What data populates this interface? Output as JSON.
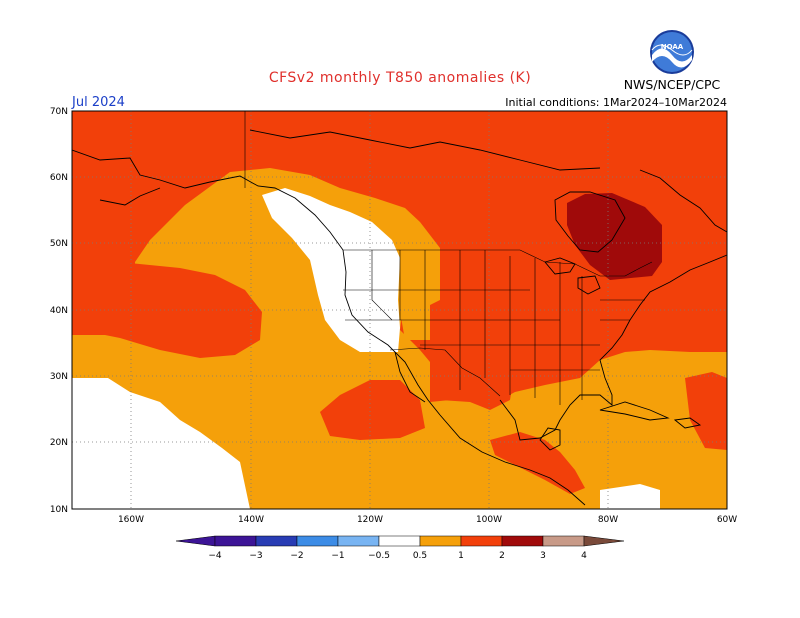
{
  "title": "CFSv2 monthly T850 anomalies (K)",
  "month": "Jul 2024",
  "conditions": "Initial conditions: 1Mar2024–10Mar2024",
  "agency": "NWS/NCEP/CPC",
  "logo_text": "NOAA",
  "colors": {
    "title": "#e0302c",
    "month": "#1b3fc8",
    "gt_0_5": "#f5a00a",
    "gt_1": "#f2400a",
    "gt_2": "#a00a0a",
    "lt_-0_5": "#78b4f2",
    "lt_-1": "#3c8ce6",
    "lt_-2": "#1e64d2",
    "lt_-3": "#283cb4",
    "lt_-4": "#3c1496",
    "gt_3": "#c89a88",
    "gt_4": "#7a4a3a"
  },
  "map": {
    "lat_ticks": [
      "70N",
      "60N",
      "50N",
      "40N",
      "30N",
      "20N",
      "10N"
    ],
    "lon_ticks": [
      "160W",
      "140W",
      "120W",
      "100W",
      "80W",
      "60W"
    ]
  },
  "colorbar": {
    "labels": [
      "−4",
      "−3",
      "−2",
      "−1",
      "−0.5",
      "0.5",
      "1",
      "2",
      "3",
      "4"
    ]
  }
}
